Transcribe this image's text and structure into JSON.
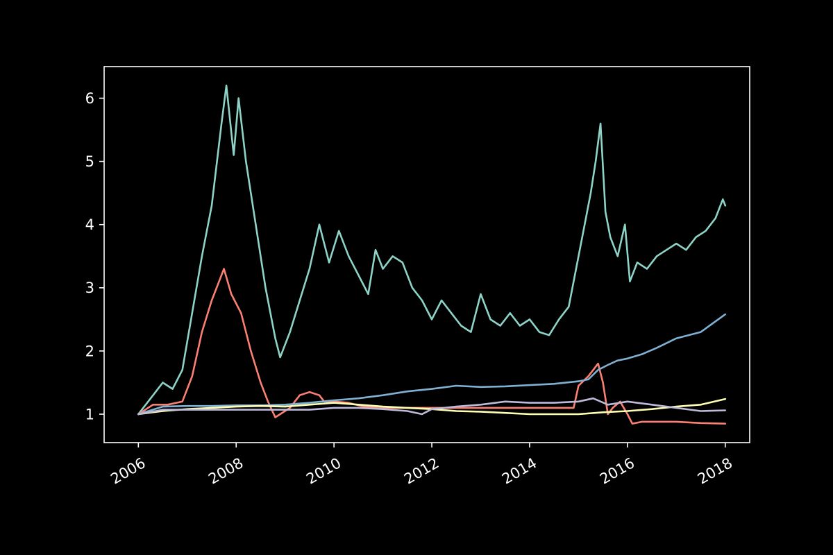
{
  "chart_data": {
    "type": "line",
    "title": "",
    "xlabel": "",
    "ylabel": "",
    "background": "#000000",
    "xlim": [
      2005.3,
      2018.5
    ],
    "ylim": [
      0.55,
      6.5
    ],
    "xticks": [
      2006,
      2008,
      2010,
      2012,
      2014,
      2016,
      2018
    ],
    "xtick_labels": [
      "2006",
      "2008",
      "2010",
      "2012",
      "2014",
      "2016",
      "2018"
    ],
    "yticks": [
      1,
      2,
      3,
      4,
      5,
      6
    ],
    "ytick_labels": [
      "1",
      "2",
      "3",
      "4",
      "5",
      "6"
    ],
    "grid": false,
    "legend": "none",
    "series": [
      {
        "color": "#8dd3c7",
        "x": [
          2006.0,
          2006.3,
          2006.5,
          2006.7,
          2006.9,
          2007.1,
          2007.3,
          2007.5,
          2007.7,
          2007.8,
          2007.95,
          2008.05,
          2008.2,
          2008.4,
          2008.6,
          2008.8,
          2008.9,
          2009.1,
          2009.3,
          2009.5,
          2009.7,
          2009.9,
          2010.1,
          2010.3,
          2010.5,
          2010.7,
          2010.85,
          2011.0,
          2011.2,
          2011.4,
          2011.6,
          2011.8,
          2012.0,
          2012.2,
          2012.4,
          2012.6,
          2012.8,
          2013.0,
          2013.2,
          2013.4,
          2013.6,
          2013.8,
          2014.0,
          2014.2,
          2014.4,
          2014.6,
          2014.8,
          2014.95,
          2015.1,
          2015.25,
          2015.35,
          2015.45,
          2015.55,
          2015.65,
          2015.8,
          2015.95,
          2016.05,
          2016.2,
          2016.4,
          2016.6,
          2016.8,
          2017.0,
          2017.2,
          2017.4,
          2017.6,
          2017.8,
          2017.95,
          2018.0
        ],
        "y": [
          1.0,
          1.3,
          1.5,
          1.4,
          1.7,
          2.6,
          3.5,
          4.3,
          5.6,
          6.2,
          5.1,
          6.0,
          5.0,
          4.0,
          3.0,
          2.2,
          1.9,
          2.3,
          2.8,
          3.3,
          4.0,
          3.4,
          3.9,
          3.5,
          3.2,
          2.9,
          3.6,
          3.3,
          3.5,
          3.4,
          3.0,
          2.8,
          2.5,
          2.8,
          2.6,
          2.4,
          2.3,
          2.9,
          2.5,
          2.4,
          2.6,
          2.4,
          2.5,
          2.3,
          2.25,
          2.5,
          2.7,
          3.3,
          3.9,
          4.5,
          5.0,
          5.6,
          4.2,
          3.8,
          3.5,
          4.0,
          3.1,
          3.4,
          3.3,
          3.5,
          3.6,
          3.7,
          3.6,
          3.8,
          3.9,
          4.1,
          4.4,
          4.3
        ]
      },
      {
        "color": "#fb8072",
        "x": [
          2006.0,
          2006.3,
          2006.6,
          2006.9,
          2007.1,
          2007.3,
          2007.5,
          2007.65,
          2007.75,
          2007.9,
          2008.1,
          2008.3,
          2008.5,
          2008.65,
          2008.8,
          2008.9,
          2009.1,
          2009.3,
          2009.5,
          2009.7,
          2009.8,
          2010.0,
          2010.3,
          2010.6,
          2010.9,
          2011.2,
          2011.6,
          2012.0,
          2012.5,
          2013.0,
          2013.5,
          2014.0,
          2014.5,
          2014.9,
          2015.0,
          2015.2,
          2015.4,
          2015.5,
          2015.6,
          2015.7,
          2015.85,
          2016.0,
          2016.1,
          2016.3,
          2016.6,
          2017.0,
          2017.5,
          2018.0
        ],
        "y": [
          1.0,
          1.15,
          1.15,
          1.2,
          1.6,
          2.3,
          2.8,
          3.1,
          3.3,
          2.9,
          2.6,
          2.0,
          1.5,
          1.2,
          0.95,
          1.0,
          1.1,
          1.3,
          1.35,
          1.3,
          1.2,
          1.2,
          1.18,
          1.12,
          1.1,
          1.1,
          1.1,
          1.1,
          1.1,
          1.1,
          1.1,
          1.1,
          1.1,
          1.1,
          1.45,
          1.6,
          1.8,
          1.5,
          1.0,
          1.1,
          1.2,
          1.0,
          0.85,
          0.88,
          0.88,
          0.88,
          0.86,
          0.85
        ]
      },
      {
        "color": "#80b1d3",
        "x": [
          2006.0,
          2006.5,
          2007.0,
          2007.5,
          2008.0,
          2008.5,
          2009.0,
          2009.5,
          2010.0,
          2010.5,
          2011.0,
          2011.5,
          2012.0,
          2012.5,
          2013.0,
          2013.5,
          2014.0,
          2014.5,
          2015.0,
          2015.2,
          2015.4,
          2015.6,
          2015.8,
          2016.0,
          2016.3,
          2016.6,
          2017.0,
          2017.5,
          2018.0
        ],
        "y": [
          1.0,
          1.12,
          1.13,
          1.13,
          1.14,
          1.14,
          1.15,
          1.18,
          1.22,
          1.25,
          1.3,
          1.36,
          1.4,
          1.45,
          1.43,
          1.44,
          1.46,
          1.48,
          1.52,
          1.55,
          1.7,
          1.78,
          1.85,
          1.88,
          1.95,
          2.05,
          2.2,
          2.3,
          2.58
        ]
      },
      {
        "color": "#ffffb3",
        "x": [
          2006.0,
          2006.5,
          2007.0,
          2007.5,
          2008.0,
          2008.5,
          2009.0,
          2009.5,
          2010.0,
          2010.5,
          2011.0,
          2011.5,
          2012.0,
          2012.5,
          2013.0,
          2013.5,
          2014.0,
          2014.5,
          2015.0,
          2015.5,
          2016.0,
          2016.5,
          2017.0,
          2017.5,
          2018.0
        ],
        "y": [
          1.0,
          1.05,
          1.08,
          1.1,
          1.12,
          1.13,
          1.12,
          1.15,
          1.18,
          1.15,
          1.12,
          1.1,
          1.08,
          1.05,
          1.04,
          1.02,
          1.0,
          1.0,
          1.0,
          1.03,
          1.05,
          1.08,
          1.12,
          1.15,
          1.24
        ]
      },
      {
        "color": "#bebada",
        "x": [
          2006.0,
          2006.5,
          2007.0,
          2007.5,
          2008.0,
          2008.5,
          2009.0,
          2009.5,
          2010.0,
          2010.5,
          2011.0,
          2011.5,
          2011.8,
          2012.0,
          2012.5,
          2013.0,
          2013.5,
          2014.0,
          2014.5,
          2015.0,
          2015.3,
          2015.6,
          2016.0,
          2016.5,
          2017.0,
          2017.5,
          2018.0
        ],
        "y": [
          1.0,
          1.07,
          1.07,
          1.07,
          1.07,
          1.07,
          1.07,
          1.07,
          1.1,
          1.1,
          1.08,
          1.05,
          1.0,
          1.08,
          1.12,
          1.15,
          1.2,
          1.18,
          1.18,
          1.2,
          1.25,
          1.15,
          1.2,
          1.15,
          1.1,
          1.05,
          1.06
        ]
      }
    ]
  }
}
